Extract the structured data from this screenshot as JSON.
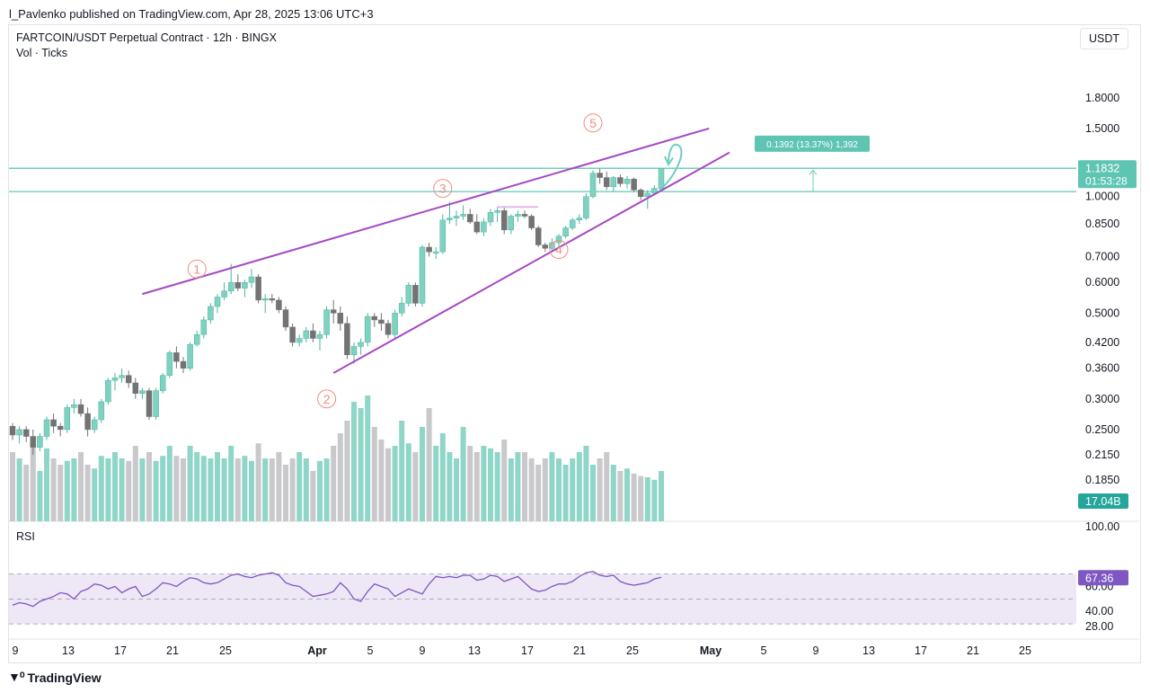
{
  "header": {
    "publisher_line": "l_Pavlenko published on TradingView.com, Apr 28, 2025 13:06 UTC+3",
    "symbol_line": "FARTCOIN/USDT Perpetual Contract · 12h · BINGX",
    "indicator_line": "Vol · Ticks",
    "currency": "USDT"
  },
  "footer": {
    "brand": "TradingView",
    "brand_logo": "tradingview-logo"
  },
  "colors": {
    "up": "#7fd1c0",
    "up_stroke": "#4bb4a0",
    "down": "#737373",
    "vol_up": "#8fd6c8",
    "vol_down": "#c9c9cc",
    "wedge": "#a548c5",
    "hline": "#6ccfbf",
    "annotation": "#f28b82",
    "rsi_line": "#7e57c2",
    "rsi_band": "#ede7f6",
    "grid": "#e6e8ee"
  },
  "chart_data": [
    {
      "type": "candlestick",
      "title": "FARTCOIN/USDT Perpetual Contract · 12h · BINGX",
      "scale": "log",
      "ylim": [
        0.17,
        2.1
      ],
      "y_ticks": [
        "1.8000",
        "1.5000",
        "1.0000",
        "0.8500",
        "0.7000",
        "0.6000",
        "0.5000",
        "0.4200",
        "0.3600",
        "0.3000",
        "0.2500",
        "0.2150",
        "0.1850"
      ],
      "x_ticks": [
        "9",
        "13",
        "17",
        "21",
        "25",
        "Apr",
        "5",
        "9",
        "13",
        "17",
        "21",
        "25",
        "May",
        "5",
        "9",
        "13",
        "17",
        "21",
        "25"
      ],
      "ohlc": [
        [
          0.255,
          0.26,
          0.235,
          0.242
        ],
        [
          0.242,
          0.255,
          0.23,
          0.25
        ],
        [
          0.25,
          0.255,
          0.232,
          0.24
        ],
        [
          0.24,
          0.25,
          0.215,
          0.225
        ],
        [
          0.225,
          0.245,
          0.22,
          0.24
        ],
        [
          0.24,
          0.27,
          0.235,
          0.265
        ],
        [
          0.265,
          0.275,
          0.245,
          0.255
        ],
        [
          0.255,
          0.26,
          0.24,
          0.25
        ],
        [
          0.25,
          0.29,
          0.245,
          0.285
        ],
        [
          0.285,
          0.3,
          0.275,
          0.29
        ],
        [
          0.29,
          0.3,
          0.27,
          0.275
        ],
        [
          0.275,
          0.285,
          0.24,
          0.25
        ],
        [
          0.25,
          0.27,
          0.245,
          0.265
        ],
        [
          0.265,
          0.3,
          0.26,
          0.295
        ],
        [
          0.295,
          0.34,
          0.29,
          0.335
        ],
        [
          0.335,
          0.35,
          0.315,
          0.34
        ],
        [
          0.34,
          0.36,
          0.33,
          0.345
        ],
        [
          0.345,
          0.355,
          0.32,
          0.33
        ],
        [
          0.33,
          0.34,
          0.3,
          0.31
        ],
        [
          0.31,
          0.32,
          0.3,
          0.315
        ],
        [
          0.315,
          0.32,
          0.265,
          0.27
        ],
        [
          0.27,
          0.32,
          0.265,
          0.315
        ],
        [
          0.315,
          0.35,
          0.31,
          0.345
        ],
        [
          0.345,
          0.4,
          0.34,
          0.395
        ],
        [
          0.395,
          0.41,
          0.36,
          0.375
        ],
        [
          0.375,
          0.385,
          0.35,
          0.36
        ],
        [
          0.36,
          0.42,
          0.355,
          0.415
        ],
        [
          0.415,
          0.45,
          0.41,
          0.44
        ],
        [
          0.44,
          0.49,
          0.43,
          0.48
        ],
        [
          0.48,
          0.53,
          0.47,
          0.52
        ],
        [
          0.52,
          0.56,
          0.5,
          0.55
        ],
        [
          0.55,
          0.6,
          0.54,
          0.57
        ],
        [
          0.57,
          0.67,
          0.56,
          0.6
        ],
        [
          0.6,
          0.63,
          0.57,
          0.58
        ],
        [
          0.58,
          0.61,
          0.55,
          0.6
        ],
        [
          0.6,
          0.65,
          0.58,
          0.62
        ],
        [
          0.62,
          0.63,
          0.53,
          0.54
        ],
        [
          0.54,
          0.56,
          0.5,
          0.545
        ],
        [
          0.545,
          0.56,
          0.53,
          0.54
        ],
        [
          0.54,
          0.55,
          0.5,
          0.51
        ],
        [
          0.51,
          0.52,
          0.45,
          0.46
        ],
        [
          0.46,
          0.47,
          0.41,
          0.42
        ],
        [
          0.42,
          0.44,
          0.41,
          0.43
        ],
        [
          0.43,
          0.46,
          0.42,
          0.45
        ],
        [
          0.45,
          0.47,
          0.42,
          0.43
        ],
        [
          0.43,
          0.45,
          0.4,
          0.44
        ],
        [
          0.44,
          0.52,
          0.43,
          0.51
        ],
        [
          0.51,
          0.54,
          0.47,
          0.5
        ],
        [
          0.5,
          0.52,
          0.45,
          0.47
        ],
        [
          0.47,
          0.49,
          0.38,
          0.39
        ],
        [
          0.39,
          0.42,
          0.37,
          0.41
        ],
        [
          0.41,
          0.43,
          0.39,
          0.42
        ],
        [
          0.42,
          0.5,
          0.41,
          0.49
        ],
        [
          0.49,
          0.5,
          0.46,
          0.48
        ],
        [
          0.48,
          0.5,
          0.45,
          0.47
        ],
        [
          0.47,
          0.48,
          0.43,
          0.44
        ],
        [
          0.44,
          0.51,
          0.43,
          0.5
        ],
        [
          0.5,
          0.55,
          0.49,
          0.53
        ],
        [
          0.53,
          0.6,
          0.52,
          0.59
        ],
        [
          0.59,
          0.6,
          0.52,
          0.53
        ],
        [
          0.53,
          0.75,
          0.52,
          0.74
        ],
        [
          0.74,
          0.76,
          0.7,
          0.72
        ],
        [
          0.72,
          0.74,
          0.69,
          0.72
        ],
        [
          0.72,
          0.9,
          0.71,
          0.87
        ],
        [
          0.87,
          0.97,
          0.85,
          0.88
        ],
        [
          0.88,
          0.92,
          0.84,
          0.89
        ],
        [
          0.89,
          0.95,
          0.87,
          0.9
        ],
        [
          0.9,
          0.93,
          0.85,
          0.86
        ],
        [
          0.86,
          0.9,
          0.8,
          0.81
        ],
        [
          0.81,
          0.88,
          0.79,
          0.86
        ],
        [
          0.86,
          0.93,
          0.84,
          0.91
        ],
        [
          0.91,
          0.94,
          0.86,
          0.92
        ],
        [
          0.92,
          0.94,
          0.8,
          0.82
        ],
        [
          0.82,
          0.9,
          0.8,
          0.89
        ],
        [
          0.89,
          0.92,
          0.86,
          0.9
        ],
        [
          0.9,
          0.92,
          0.88,
          0.89
        ],
        [
          0.89,
          0.9,
          0.82,
          0.83
        ],
        [
          0.83,
          0.84,
          0.74,
          0.75
        ],
        [
          0.75,
          0.76,
          0.72,
          0.735
        ],
        [
          0.735,
          0.78,
          0.72,
          0.76
        ],
        [
          0.76,
          0.8,
          0.74,
          0.79
        ],
        [
          0.79,
          0.84,
          0.78,
          0.83
        ],
        [
          0.83,
          0.88,
          0.82,
          0.87
        ],
        [
          0.87,
          0.9,
          0.85,
          0.88
        ],
        [
          0.88,
          1.02,
          0.87,
          1.0
        ],
        [
          1.0,
          1.17,
          0.99,
          1.15
        ],
        [
          1.15,
          1.18,
          1.08,
          1.12
        ],
        [
          1.12,
          1.16,
          1.04,
          1.06
        ],
        [
          1.06,
          1.13,
          1.03,
          1.12
        ],
        [
          1.12,
          1.14,
          1.06,
          1.08
        ],
        [
          1.08,
          1.13,
          1.05,
          1.11
        ],
        [
          1.11,
          1.12,
          1.03,
          1.04
        ],
        [
          1.04,
          1.05,
          0.98,
          1.0
        ],
        [
          1.0,
          1.04,
          0.93,
          1.02
        ],
        [
          1.02,
          1.07,
          1.01,
          1.05
        ],
        [
          1.05,
          1.18,
          1.04,
          1.1832
        ]
      ],
      "volume": [
        0.55,
        0.5,
        0.45,
        0.6,
        0.4,
        0.58,
        0.5,
        0.45,
        0.48,
        0.5,
        0.55,
        0.45,
        0.42,
        0.52,
        0.5,
        0.55,
        0.5,
        0.48,
        0.6,
        0.5,
        0.55,
        0.48,
        0.52,
        0.6,
        0.52,
        0.5,
        0.6,
        0.55,
        0.52,
        0.5,
        0.55,
        0.5,
        0.6,
        0.5,
        0.52,
        0.48,
        0.62,
        0.5,
        0.5,
        0.55,
        0.45,
        0.5,
        0.55,
        0.5,
        0.4,
        0.48,
        0.5,
        0.6,
        0.7,
        0.8,
        0.95,
        0.9,
        1.0,
        0.75,
        0.65,
        0.58,
        0.6,
        0.8,
        0.62,
        0.55,
        0.75,
        0.9,
        0.6,
        0.7,
        0.55,
        0.5,
        0.75,
        0.6,
        0.55,
        0.6,
        0.58,
        0.55,
        0.65,
        0.5,
        0.55,
        0.55,
        0.5,
        0.45,
        0.5,
        0.55,
        0.5,
        0.45,
        0.5,
        0.55,
        0.6,
        0.45,
        0.5,
        0.55,
        0.45,
        0.4,
        0.42,
        0.38,
        0.36,
        0.35,
        0.33,
        0.4
      ],
      "last_price": "1.1832",
      "countdown": "01:53:28",
      "volume_last": "17.04B",
      "horizontal_levels": [
        1.1832,
        1.03
      ],
      "measure_label": "0.1392 (13.37%) 1,392",
      "wave_labels": [
        "1",
        "2",
        "3",
        "4",
        "5"
      ],
      "pattern": "rising wedge"
    },
    {
      "type": "line",
      "title": "RSI",
      "ylim": [
        20,
        105
      ],
      "y_ticks": [
        "100.00",
        "60.00",
        "40.00",
        "28.00"
      ],
      "band": [
        30,
        70
      ],
      "last_value": "67.36",
      "values": [
        45,
        47,
        46,
        44,
        48,
        50,
        52,
        55,
        54,
        50,
        56,
        58,
        62,
        61,
        58,
        60,
        55,
        58,
        60,
        52,
        54,
        58,
        63,
        62,
        60,
        64,
        67,
        66,
        63,
        62,
        63,
        66,
        69,
        70,
        68,
        67,
        69,
        70,
        71,
        69,
        63,
        61,
        60,
        56,
        52,
        53,
        54,
        56,
        63,
        58,
        50,
        48,
        56,
        62,
        60,
        58,
        52,
        55,
        58,
        56,
        54,
        62,
        68,
        67,
        68,
        67,
        69,
        69,
        65,
        66,
        69,
        68,
        64,
        66,
        68,
        63,
        58,
        56,
        57,
        60,
        62,
        62,
        64,
        68,
        71,
        72,
        69,
        68,
        69,
        64,
        62,
        61,
        62,
        63,
        66,
        67.36
      ]
    }
  ]
}
